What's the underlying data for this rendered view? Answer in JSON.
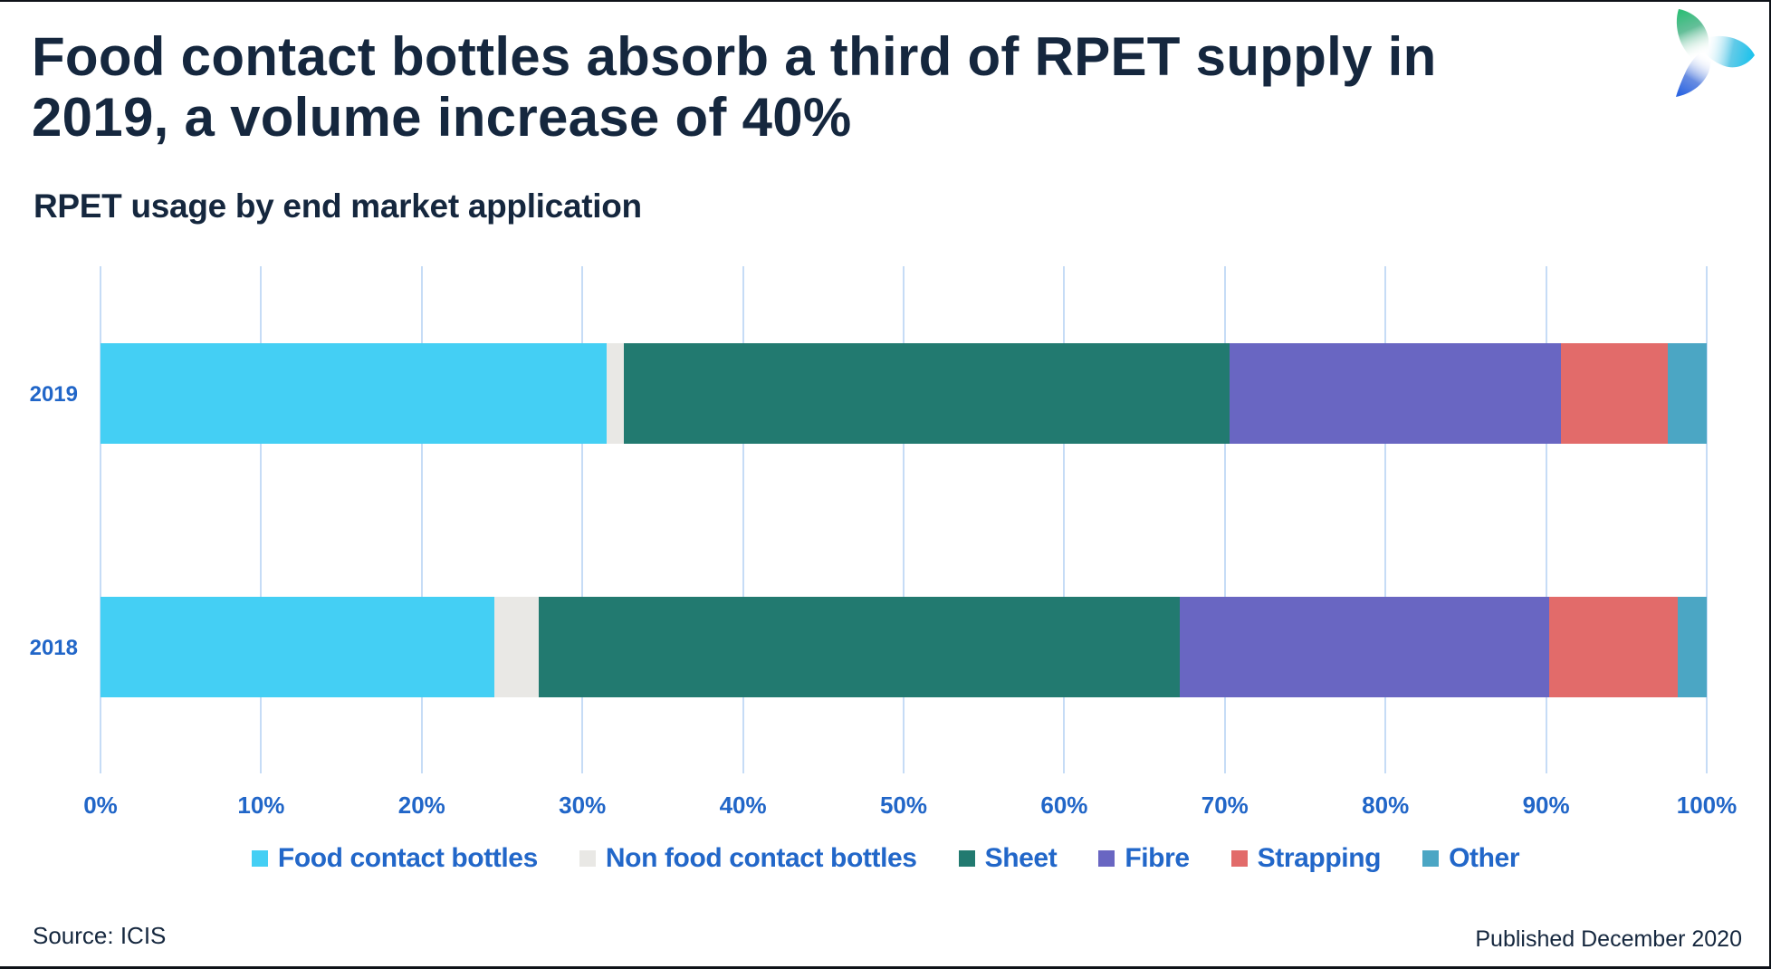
{
  "title": "Food contact bottles absorb a third of RPET supply in 2019, a volume increase of 40%",
  "subtitle": "RPET usage by end market application",
  "footer": {
    "source": "Source: ICIS",
    "published": "Published December 2020"
  },
  "logo": {
    "name": "icis-trefoil-logo",
    "petal_colors": {
      "green": "#2FBE77",
      "cyan": "#27C5EC",
      "blue": "#2C66DF"
    }
  },
  "colors": {
    "title_text": "#15273E",
    "axis_text": "#2166C8",
    "legend_text": "#2267C9",
    "gridline": "#C7DDF6",
    "border": "#0E1218",
    "background": "#FFFFFF"
  },
  "chart_data": {
    "type": "bar",
    "orientation": "horizontal",
    "stacked": true,
    "categories": [
      "2019",
      "2018"
    ],
    "series": [
      {
        "name": "Food contact bottles",
        "color": "#44CFF4",
        "values": [
          31.5,
          24.5
        ]
      },
      {
        "name": "Non food contact bottles",
        "color": "#E9E8E5",
        "values": [
          1.1,
          2.8
        ]
      },
      {
        "name": "Sheet",
        "color": "#227A70",
        "values": [
          37.7,
          39.9
        ]
      },
      {
        "name": "Fibre",
        "color": "#6966C2",
        "values": [
          20.6,
          23.0
        ]
      },
      {
        "name": "Strapping",
        "color": "#E26B6A",
        "values": [
          6.7,
          8.0
        ]
      },
      {
        "name": "Other",
        "color": "#4BA6C4",
        "values": [
          2.4,
          1.8
        ]
      }
    ],
    "x_ticks": [
      "0%",
      "10%",
      "20%",
      "30%",
      "40%",
      "50%",
      "60%",
      "70%",
      "80%",
      "90%",
      "100%"
    ],
    "xlim": [
      0,
      100
    ],
    "xlabel": "",
    "ylabel": "",
    "grid": true,
    "legend_position": "bottom"
  }
}
